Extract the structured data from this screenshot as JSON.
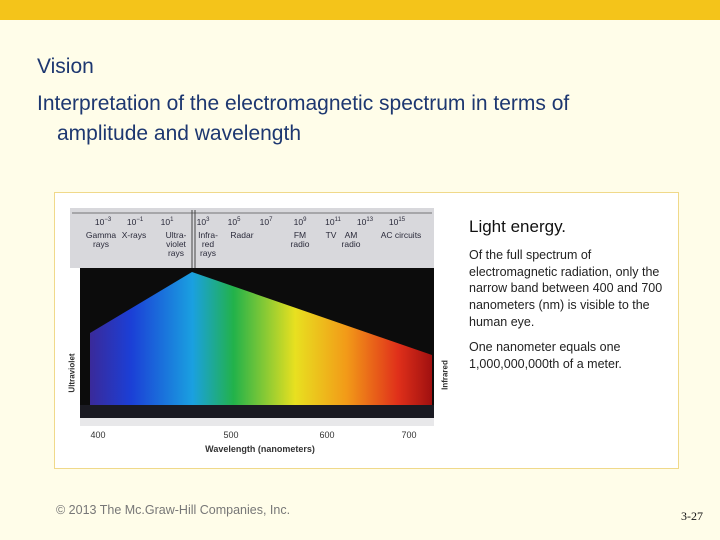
{
  "header": {
    "title": "Vision",
    "subtitle": "Interpretation of the electromagnetic spectrum in terms of amplitude and wavelength"
  },
  "figure": {
    "scale_labels": [
      {
        "base": "10",
        "exp": "−3"
      },
      {
        "base": "10",
        "exp": "−1"
      },
      {
        "base": "10",
        "exp": "1"
      },
      {
        "base": "10",
        "exp": "3"
      },
      {
        "base": "10",
        "exp": "5"
      },
      {
        "base": "10",
        "exp": "7"
      },
      {
        "base": "10",
        "exp": "9"
      },
      {
        "base": "10",
        "exp": "11"
      },
      {
        "base": "10",
        "exp": "13"
      },
      {
        "base": "10",
        "exp": "15"
      }
    ],
    "band_labels": [
      "Gamma\nrays",
      "X-rays",
      "Ultra-\nviolet\nrays",
      "Infra-\nred\nrays",
      "Radar",
      "FM\nradio",
      "TV",
      "AM\nradio",
      "AC circuits"
    ],
    "side_labels": {
      "left": "Ultraviolet",
      "right": "Infrared"
    },
    "wavelength_ticks": [
      "400",
      "500",
      "600",
      "700"
    ],
    "axis_label": "Wavelength (nanometers)"
  },
  "caption": {
    "heading": "Light energy.",
    "paragraphs": [
      "Of the full spectrum of electromagnetic radiation, only the narrow band between 400 and 700 nanometers (nm) is visible to the human eye.",
      "One nanometer equals one 1,000,000,000th of a meter."
    ]
  },
  "footer": {
    "copyright": "© 2013 The Mc.Graw-Hill Companies, Inc.",
    "page": "3-27"
  }
}
